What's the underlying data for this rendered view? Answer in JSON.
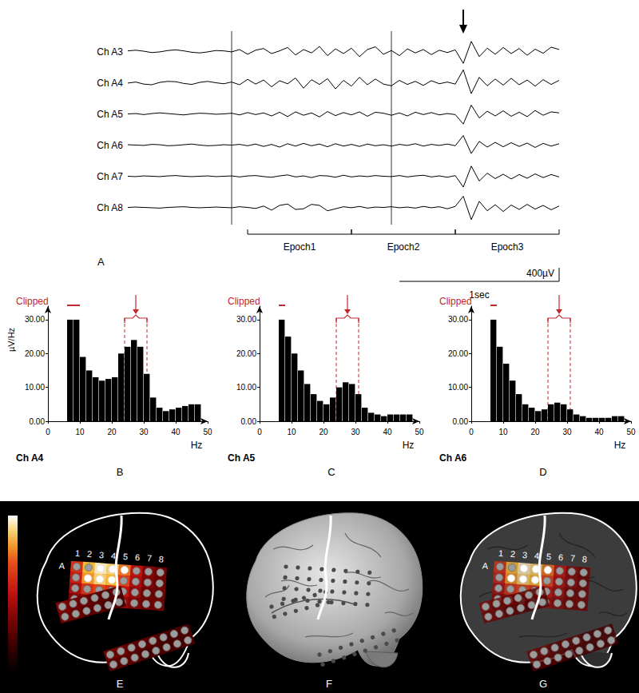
{
  "chart_data": [
    {
      "type": "line",
      "panel_label": "A",
      "color": "#000000",
      "tick_labels": false,
      "x": [
        0,
        0.05,
        0.1,
        0.15,
        0.2,
        0.25,
        0.3,
        0.35,
        0.4,
        0.45,
        0.5,
        0.55,
        0.6,
        0.65,
        0.7,
        0.75,
        0.8,
        0.85,
        0.9,
        0.95,
        1,
        1.05,
        1.1,
        1.15,
        1.2,
        1.25,
        1.3,
        1.35,
        1.4,
        1.45,
        1.5,
        1.55,
        1.6,
        1.65,
        1.7,
        1.75,
        1.8,
        1.85,
        1.9,
        1.95,
        2,
        2.05,
        2.1,
        2.15,
        2.2,
        2.25,
        2.3,
        2.35,
        2.4,
        2.45,
        2.5,
        2.55,
        2.6,
        2.65,
        2.7
      ],
      "xlim": [
        0,
        2.7
      ],
      "ylim": [
        -460,
        460
      ],
      "series": [
        {
          "name": "Ch A3",
          "values": [
            20,
            40,
            10,
            -30,
            -10,
            30,
            50,
            20,
            -20,
            -40,
            -10,
            30,
            20,
            -10,
            60,
            -80,
            40,
            90,
            -60,
            20,
            120,
            -100,
            60,
            -40,
            150,
            -120,
            80,
            -60,
            100,
            -150,
            60,
            140,
            -80,
            30,
            -120,
            80,
            -40,
            60,
            -90,
            40,
            -30,
            50,
            -350,
            300,
            -150,
            100,
            -80,
            120,
            -60,
            90,
            -110,
            70,
            -50,
            130,
            60
          ]
        },
        {
          "name": "Ch A4",
          "values": [
            -10,
            20,
            -40,
            -60,
            10,
            40,
            30,
            -20,
            -50,
            10,
            40,
            0,
            -30,
            20,
            -60,
            100,
            -40,
            80,
            -120,
            60,
            -30,
            140,
            -160,
            90,
            -50,
            120,
            -180,
            70,
            -100,
            160,
            -60,
            110,
            -40,
            -90,
            70,
            -50,
            40,
            -80,
            60,
            -30,
            20,
            -40,
            380,
            -320,
            160,
            -90,
            110,
            -70,
            130,
            -60,
            80,
            -100,
            90,
            -50,
            70
          ]
        },
        {
          "name": "Ch A5",
          "values": [
            0,
            10,
            -20,
            10,
            30,
            10,
            -10,
            -30,
            0,
            20,
            10,
            -10,
            0,
            20,
            -30,
            40,
            -20,
            30,
            -60,
            50,
            -80,
            60,
            -40,
            30,
            -90,
            70,
            -50,
            40,
            -30,
            60,
            -70,
            50,
            20,
            -40,
            30,
            -60,
            50,
            -20,
            40,
            -30,
            10,
            -20,
            -300,
            260,
            -120,
            80,
            -60,
            90,
            -70,
            50,
            -80,
            100,
            -40,
            60,
            30
          ]
        },
        {
          "name": "Ch A6",
          "values": [
            10,
            0,
            -10,
            20,
            10,
            -20,
            -10,
            10,
            30,
            0,
            -20,
            -10,
            10,
            0,
            20,
            -20,
            30,
            -40,
            20,
            -60,
            40,
            -30,
            50,
            -20,
            30,
            -50,
            40,
            -30,
            20,
            -40,
            30,
            -20,
            10,
            -30,
            20,
            -10,
            40,
            -30,
            20,
            -10,
            30,
            -20,
            280,
            -250,
            110,
            -60,
            80,
            -50,
            70,
            -40,
            60,
            -70,
            50,
            -30,
            40
          ]
        },
        {
          "name": "Ch A7",
          "values": [
            0,
            -10,
            10,
            0,
            -10,
            10,
            20,
            0,
            -10,
            0,
            10,
            -10,
            0,
            10,
            -20,
            10,
            20,
            -10,
            -30,
            10,
            40,
            -20,
            10,
            -40,
            20,
            10,
            -30,
            30,
            -20,
            10,
            -10,
            20,
            0,
            -10,
            20,
            -20,
            10,
            30,
            -20,
            10,
            -30,
            20,
            -320,
            300,
            -140,
            90,
            -70,
            60,
            -80,
            50,
            -60,
            70,
            -40,
            50,
            -20
          ]
        },
        {
          "name": "Ch A8",
          "values": [
            0,
            10,
            0,
            -10,
            -20,
            0,
            10,
            20,
            0,
            -10,
            0,
            10,
            0,
            -10,
            20,
            0,
            -30,
            40,
            -80,
            60,
            100,
            -60,
            -40,
            90,
            60,
            -100,
            -40,
            20,
            -10,
            30,
            -20,
            10,
            0,
            20,
            -10,
            10,
            -20,
            30,
            -10,
            20,
            -40,
            30,
            330,
            -360,
            180,
            -100,
            80,
            -120,
            70,
            -60,
            90,
            -50,
            60,
            -70,
            40
          ]
        }
      ],
      "vertical_lines": [
        0.65,
        1.65
      ],
      "epochs": [
        {
          "label": "Epoch1",
          "range": [
            0.75,
            1.4
          ]
        },
        {
          "label": "Epoch2",
          "range": [
            1.4,
            2.05
          ]
        },
        {
          "label": "Epoch3",
          "range": [
            2.05,
            2.7
          ]
        }
      ],
      "arrow_x": 2.1,
      "scale_bar": {
        "x": 1,
        "x_label": "1sec",
        "y": 400,
        "y_label": "400µV"
      }
    },
    {
      "type": "histogram",
      "panel_label": "B",
      "title": "Ch A4",
      "color": "#000000",
      "grid": false,
      "bins": [
        6,
        8,
        10,
        12,
        14,
        16,
        18,
        20,
        22,
        24,
        26,
        28,
        30,
        32,
        34,
        36,
        38,
        40,
        42,
        44,
        46,
        48
      ],
      "counts": [
        30,
        30,
        19,
        15,
        13,
        12,
        12.5,
        13,
        20,
        22,
        24,
        22,
        14,
        7,
        4,
        3,
        3.5,
        4,
        4.5,
        5,
        5
      ],
      "xlim": [
        0,
        50
      ],
      "xticks": [
        0,
        10,
        20,
        30,
        40,
        50
      ],
      "ylim": [
        0,
        34
      ],
      "yticks": [
        {
          "value": 0,
          "label": "0.00"
        },
        {
          "value": 10,
          "label": "10.00"
        },
        {
          "value": 20,
          "label": "20.00"
        },
        {
          "value": 30,
          "label": "30.00"
        }
      ],
      "x_label": "Hz",
      "y_label": "µV/Hz",
      "clipped": {
        "label": "Clipped",
        "range": [
          6,
          10
        ]
      },
      "band": [
        24,
        31
      ],
      "arrow_x": 27.5
    },
    {
      "type": "histogram",
      "panel_label": "C",
      "title": "Ch A5",
      "color": "#000000",
      "grid": false,
      "bins": [
        6,
        8,
        10,
        12,
        14,
        16,
        18,
        20,
        22,
        24,
        26,
        28,
        30,
        32,
        34,
        36,
        38,
        40,
        42,
        44,
        46,
        48
      ],
      "counts": [
        30,
        25,
        20,
        15,
        11,
        8,
        6,
        5,
        7,
        10,
        11.5,
        11,
        8,
        4,
        2.5,
        2,
        1.5,
        2,
        2,
        2,
        2
      ],
      "xlim": [
        0,
        50
      ],
      "xticks": [
        0,
        10,
        20,
        30,
        40,
        50
      ],
      "ylim": [
        0,
        34
      ],
      "yticks": [
        {
          "value": 0,
          "label": "0.00"
        },
        {
          "value": 10,
          "label": "10.00"
        },
        {
          "value": 20,
          "label": "20.00"
        },
        {
          "value": 30,
          "label": "30.00"
        }
      ],
      "x_label": "Hz",
      "clipped": {
        "label": "Clipped",
        "range": [
          6,
          8
        ]
      },
      "band": [
        24,
        31
      ],
      "arrow_x": 27.5
    },
    {
      "type": "histogram",
      "panel_label": "D",
      "title": "Ch A6",
      "color": "#000000",
      "grid": false,
      "bins": [
        6,
        8,
        10,
        12,
        14,
        16,
        18,
        20,
        22,
        24,
        26,
        28,
        30,
        32,
        34,
        36,
        38,
        40,
        42,
        44,
        46,
        48
      ],
      "counts": [
        30,
        22,
        17,
        12,
        8,
        5,
        4,
        3,
        3.5,
        5,
        5.5,
        5,
        3.5,
        2,
        1.5,
        1,
        1,
        1,
        1,
        1.5,
        1.5
      ],
      "xlim": [
        0,
        50
      ],
      "xticks": [
        0,
        10,
        20,
        30,
        40,
        50
      ],
      "ylim": [
        0,
        34
      ],
      "yticks": [
        {
          "value": 0,
          "label": "0.00"
        },
        {
          "value": 10,
          "label": "10.00"
        },
        {
          "value": 20,
          "label": "20.00"
        },
        {
          "value": 30,
          "label": "30.00"
        }
      ],
      "x_label": "Hz",
      "clipped": {
        "label": "Clipped",
        "range": [
          6,
          8
        ]
      },
      "band": [
        24,
        31
      ],
      "arrow_x": 27.5
    }
  ],
  "brain_maps": {
    "panel_labels": [
      "E",
      "F",
      "G"
    ],
    "colorbar_range": [
      0,
      1
    ],
    "grids": [
      {
        "label": "A",
        "column_labels": [
          "1",
          "2",
          "3",
          "4",
          "5",
          "6",
          "7",
          "8"
        ],
        "heat": [
          [
            0.6,
            0.85,
            0.95,
            0.9,
            0.75,
            0.5,
            0.35,
            0.3
          ],
          [
            0.55,
            0.8,
            0.9,
            0.85,
            0.65,
            0.45,
            0.35,
            0.3
          ],
          [
            0.45,
            0.6,
            0.65,
            0.6,
            0.5,
            0.4,
            0.3,
            0.3
          ],
          [
            0.35,
            0.4,
            0.45,
            0.45,
            0.4,
            0.35,
            0.3,
            0.3
          ]
        ],
        "highlighted": [
          [
            0,
            2
          ],
          [
            0,
            3
          ],
          [
            0,
            4
          ],
          [
            1,
            1
          ],
          [
            1,
            2
          ],
          [
            1,
            3
          ]
        ]
      },
      {
        "heat": [
          [
            0.35,
            0.3,
            0.3,
            0.25,
            0.25,
            0.25
          ],
          [
            0.3,
            0.3,
            0.25,
            0.25,
            0.2,
            0.2
          ]
        ]
      },
      {
        "heat": [
          [
            0.3,
            0.3,
            0.25,
            0.25,
            0.25,
            0.2,
            0.2,
            0.2
          ],
          [
            0.25,
            0.25,
            0.25,
            0.2,
            0.2,
            0.2,
            0.2,
            0.2
          ]
        ]
      }
    ]
  }
}
